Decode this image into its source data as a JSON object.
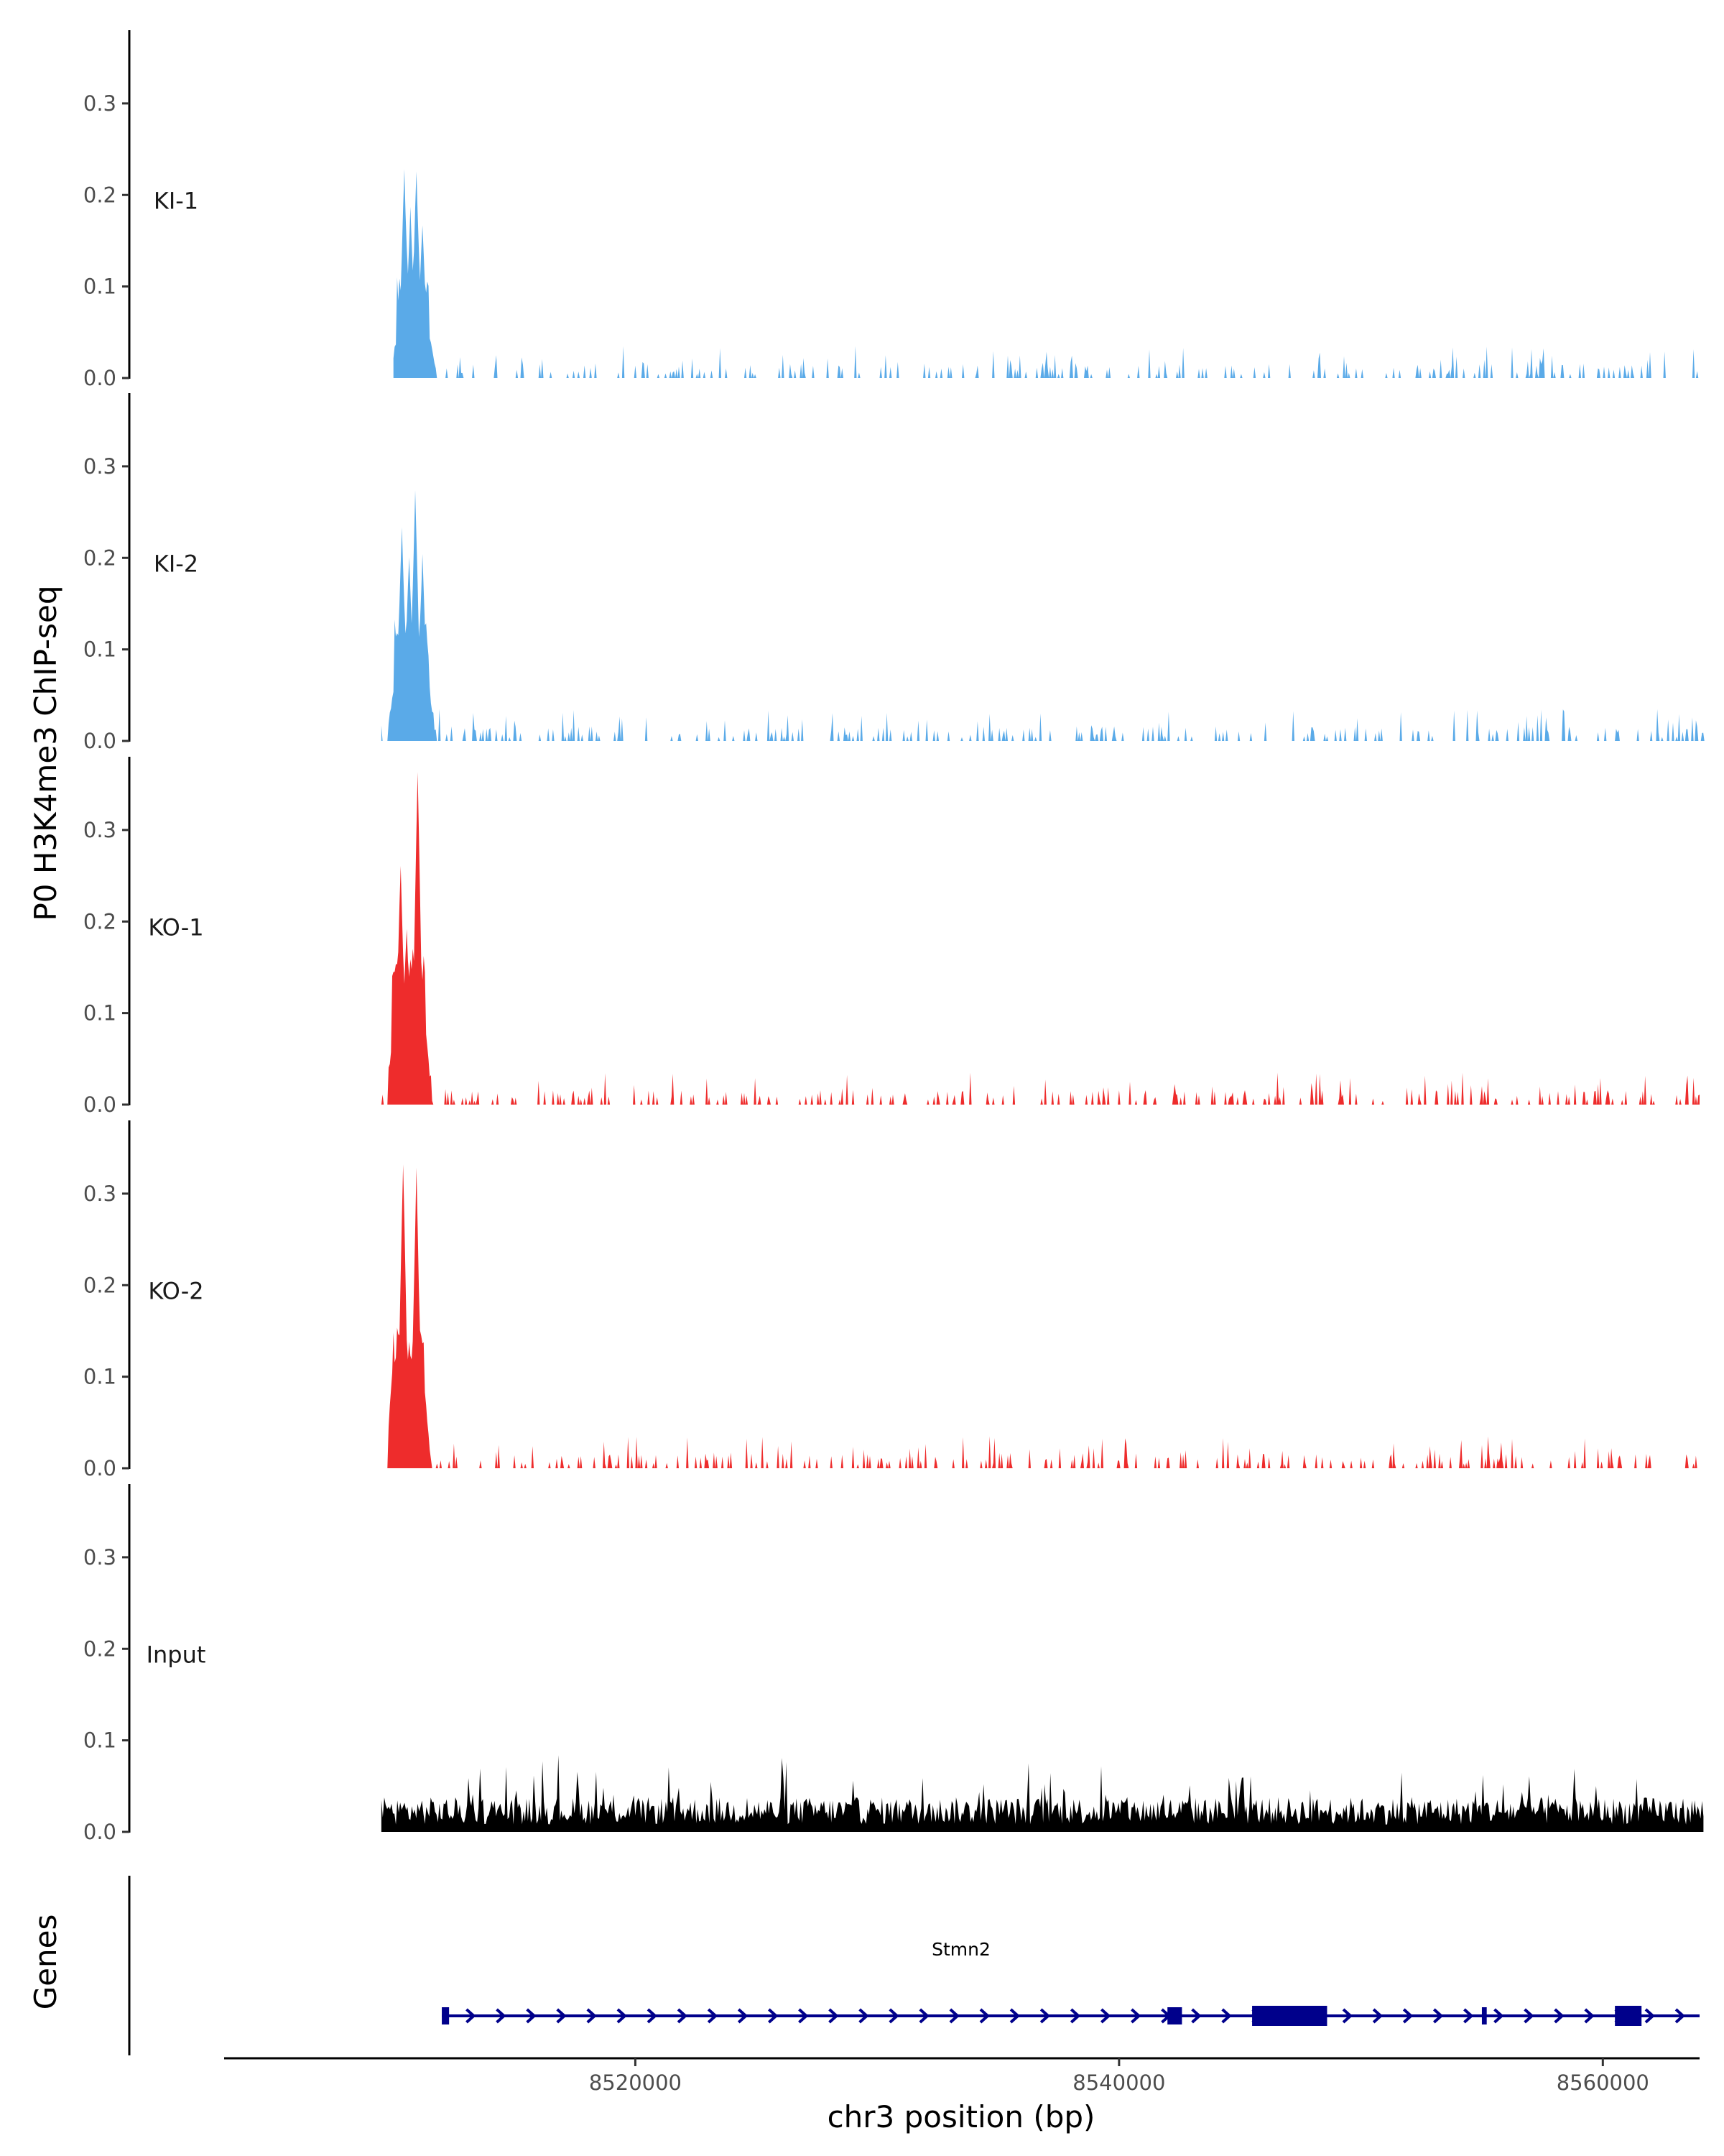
{
  "chart_data": {
    "type": "area",
    "ylabel": "P0 H3K4me3 ChIP-seq",
    "xlabel": "chr3 position (bp)",
    "genes_label": "Genes",
    "xlim": [
      8503000,
      8564000
    ],
    "ylim": [
      0,
      0.38
    ],
    "x_ticks": [
      8520000,
      8540000,
      8560000
    ],
    "y_ticks": [
      0.0,
      0.1,
      0.2,
      0.3
    ],
    "x_tick_labels": [
      "8520000",
      "8540000",
      "8560000"
    ],
    "y_tick_labels": [
      "0.0",
      "0.1",
      "0.2",
      "0.3"
    ],
    "peak_region": [
      8509800,
      8511800
    ],
    "series": [
      {
        "name": "KI-1",
        "color": "#5aaae8",
        "x_start": 8510000,
        "x_end": 8564200,
        "peak_max": 0.22,
        "background": "sparse",
        "peaks": [
          [
            8510100,
            0.03
          ],
          [
            8510450,
            0.22
          ],
          [
            8510700,
            0.18
          ],
          [
            8510950,
            0.22
          ],
          [
            8511200,
            0.16
          ],
          [
            8511500,
            0.04
          ]
        ]
      },
      {
        "name": "KI-2",
        "color": "#5aaae8",
        "x_start": 8509500,
        "x_end": 8564200,
        "peak_max": 0.265,
        "background": "sparse",
        "peaks": [
          [
            8510000,
            0.05
          ],
          [
            8510350,
            0.23
          ],
          [
            8510650,
            0.2
          ],
          [
            8510900,
            0.265
          ],
          [
            8511200,
            0.2
          ],
          [
            8511500,
            0.05
          ]
        ]
      },
      {
        "name": "KO-1",
        "color": "#ee2c2c",
        "x_start": 8509500,
        "x_end": 8564000,
        "peak_max": 0.36,
        "background": "sparse",
        "peaks": [
          [
            8509900,
            0.05
          ],
          [
            8510300,
            0.26
          ],
          [
            8510550,
            0.19
          ],
          [
            8510800,
            0.17
          ],
          [
            8511000,
            0.36
          ],
          [
            8511350,
            0.07
          ]
        ]
      },
      {
        "name": "KO-2",
        "color": "#ee2c2c",
        "x_start": 8509500,
        "x_end": 8564200,
        "peak_max": 0.33,
        "background": "sparse",
        "peaks": [
          [
            8509950,
            0.1
          ],
          [
            8510400,
            0.33
          ],
          [
            8510650,
            0.13
          ],
          [
            8510950,
            0.32
          ],
          [
            8511300,
            0.08
          ]
        ]
      },
      {
        "name": "Input",
        "color": "#000000",
        "x_start": 8509500,
        "x_end": 8564200,
        "peak_max": 0.09,
        "background": "dense",
        "peaks": []
      }
    ],
    "gene": {
      "name": "Stmn2",
      "start": 8512000,
      "end": 8564000,
      "strand": "+",
      "color": "#00008b",
      "exons": [
        [
          8512000,
          8512300
        ],
        [
          8542000,
          8542600
        ],
        [
          8545500,
          8548600
        ],
        [
          8555000,
          8555200
        ],
        [
          8560500,
          8561600
        ]
      ]
    }
  }
}
